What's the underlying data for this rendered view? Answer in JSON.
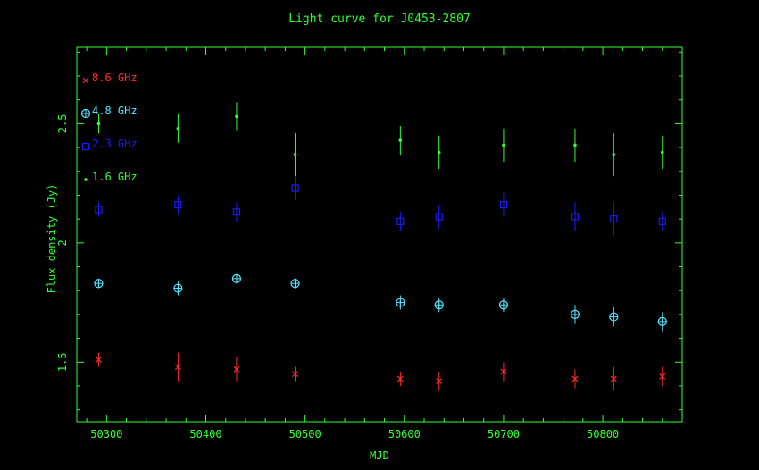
{
  "chart_data": {
    "type": "scatter",
    "title": "Light curve for J0453-2807",
    "xlabel": "MJD",
    "ylabel": "Flux density (Jy)",
    "xlim": [
      50270,
      50880
    ],
    "ylim": [
      1.25,
      2.82
    ],
    "xticks": [
      "50300",
      "50400",
      "50500",
      "50600",
      "50700",
      "50800"
    ],
    "yticks": [
      "1.5",
      "2",
      "2.5"
    ],
    "legend_position": "top-left",
    "colors": {
      "axes": "#33ff33",
      "8.6 GHz": "#ff2a2a",
      "4.8 GHz": "#55e5ff",
      "2.3 GHz": "#1a1aff",
      "1.6 GHz": "#33ff33"
    },
    "series": [
      {
        "name": "8.6 GHz",
        "marker": "x",
        "x": [
          50292,
          50372,
          50431,
          50490,
          50596,
          50635,
          50700,
          50772,
          50811,
          50860
        ],
        "y": [
          1.51,
          1.48,
          1.47,
          1.45,
          1.43,
          1.42,
          1.46,
          1.43,
          1.43,
          1.44
        ],
        "err": [
          0.03,
          0.06,
          0.05,
          0.03,
          0.03,
          0.04,
          0.04,
          0.04,
          0.05,
          0.04
        ]
      },
      {
        "name": "4.8 GHz",
        "marker": "circle-plus",
        "x": [
          50292,
          50372,
          50431,
          50490,
          50596,
          50635,
          50700,
          50772,
          50811,
          50860
        ],
        "y": [
          1.83,
          1.81,
          1.85,
          1.83,
          1.75,
          1.74,
          1.74,
          1.7,
          1.69,
          1.67
        ],
        "err": [
          0.02,
          0.03,
          0.02,
          0.02,
          0.03,
          0.03,
          0.03,
          0.04,
          0.04,
          0.04
        ]
      },
      {
        "name": "2.3 GHz",
        "marker": "square",
        "x": [
          50292,
          50372,
          50431,
          50490,
          50596,
          50635,
          50700,
          50772,
          50811,
          50860
        ],
        "y": [
          2.14,
          2.16,
          2.13,
          2.23,
          2.09,
          2.11,
          2.16,
          2.11,
          2.1,
          2.09
        ],
        "err": [
          0.03,
          0.04,
          0.04,
          0.05,
          0.04,
          0.05,
          0.05,
          0.06,
          0.07,
          0.04
        ]
      },
      {
        "name": "1.6 GHz",
        "marker": "dot",
        "x": [
          50292,
          50372,
          50431,
          50490,
          50596,
          50635,
          50700,
          50772,
          50811,
          50860
        ],
        "y": [
          2.5,
          2.48,
          2.53,
          2.37,
          2.43,
          2.38,
          2.41,
          2.41,
          2.37,
          2.38
        ],
        "err": [
          0.04,
          0.06,
          0.06,
          0.09,
          0.06,
          0.07,
          0.07,
          0.07,
          0.09,
          0.07
        ]
      }
    ]
  }
}
